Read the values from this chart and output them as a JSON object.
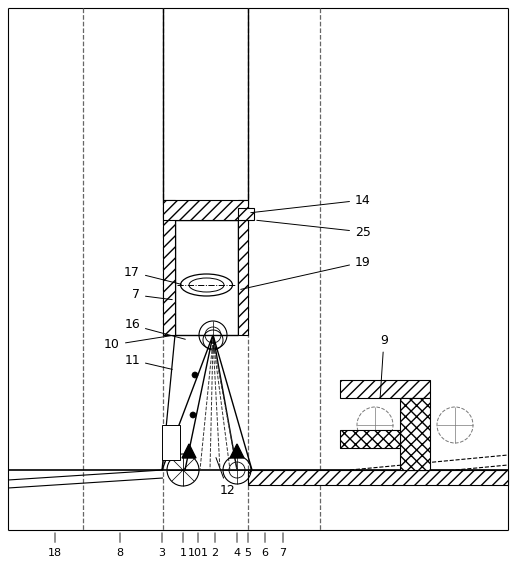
{
  "bg_color": "#ffffff",
  "lc": "#000000",
  "fig_width": 5.18,
  "fig_height": 5.83,
  "dpi": 100
}
